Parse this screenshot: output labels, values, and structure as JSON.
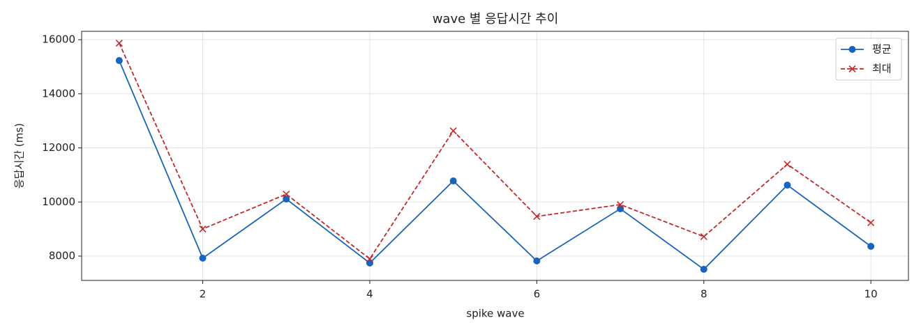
{
  "chart_data": {
    "type": "line",
    "title": "wave 별 응답시간 추이",
    "x_label": "spike wave",
    "y_label": "응답시간 (ms)",
    "x": [
      1,
      2,
      3,
      4,
      5,
      6,
      7,
      8,
      9,
      10
    ],
    "series": [
      {
        "name": "평균",
        "color": "#1565c0",
        "marker": "o",
        "linestyle": "solid",
        "values": [
          15228,
          7923,
          10109,
          7743,
          10778,
          7820,
          9749,
          7511,
          10624,
          8360
        ]
      },
      {
        "name": "최대",
        "color": "#c62828",
        "marker": "x",
        "linestyle": "dashed",
        "values": [
          15871,
          9003,
          10289,
          7897,
          12630,
          9466,
          9904,
          8720,
          11395,
          9235
        ]
      }
    ],
    "xlim": [
      0.55,
      10.45
    ],
    "ylim": [
      7100,
      16310
    ],
    "xticks": [
      2,
      4,
      6,
      8,
      10
    ],
    "yticks": [
      8000,
      10000,
      12000,
      14000,
      16000
    ],
    "grid": true,
    "legend": "upper right"
  }
}
